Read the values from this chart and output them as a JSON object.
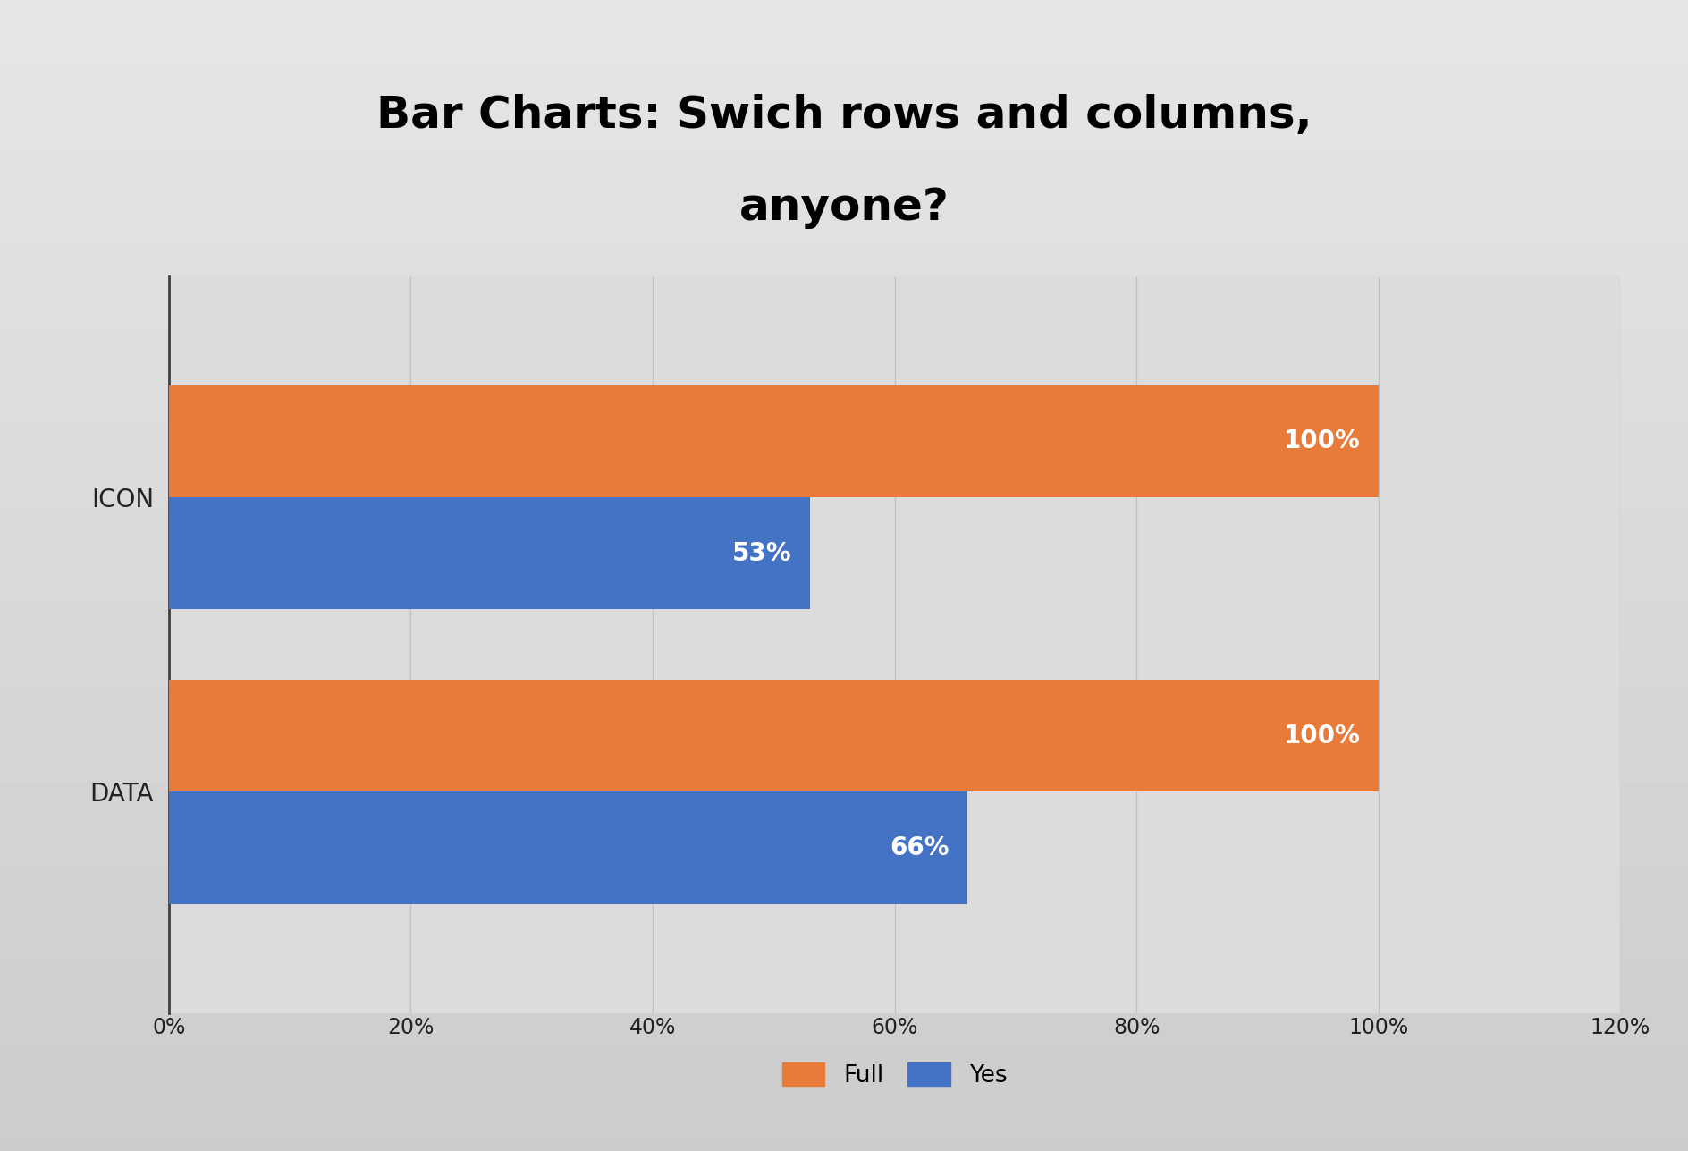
{
  "title_line1": "Bar Charts: Swich rows and columns,",
  "title_line2": "anyone?",
  "categories": [
    "DATA",
    "ICON"
  ],
  "series": {
    "Full": [
      100,
      100
    ],
    "Yes": [
      66,
      53
    ]
  },
  "colors": {
    "Full": "#E87B3A",
    "Yes": "#4472C4"
  },
  "xlim": [
    0,
    1.2
  ],
  "xticks": [
    0.0,
    0.2,
    0.4,
    0.6,
    0.8,
    1.0,
    1.2
  ],
  "xtick_labels": [
    "0%",
    "20%",
    "40%",
    "60%",
    "80%",
    "100%",
    "120%"
  ],
  "bar_height": 0.38,
  "label_fontsize": 20,
  "tick_fontsize": 17,
  "title_fontsize": 36,
  "legend_fontsize": 19,
  "annotation_fontsize": 20,
  "bg_light": "#E8E8E8",
  "bg_dark": "#C8C8C8",
  "plot_bg_color": "#DCDCDC",
  "grid_color": "#C0C0C0",
  "spine_color": "#404040"
}
